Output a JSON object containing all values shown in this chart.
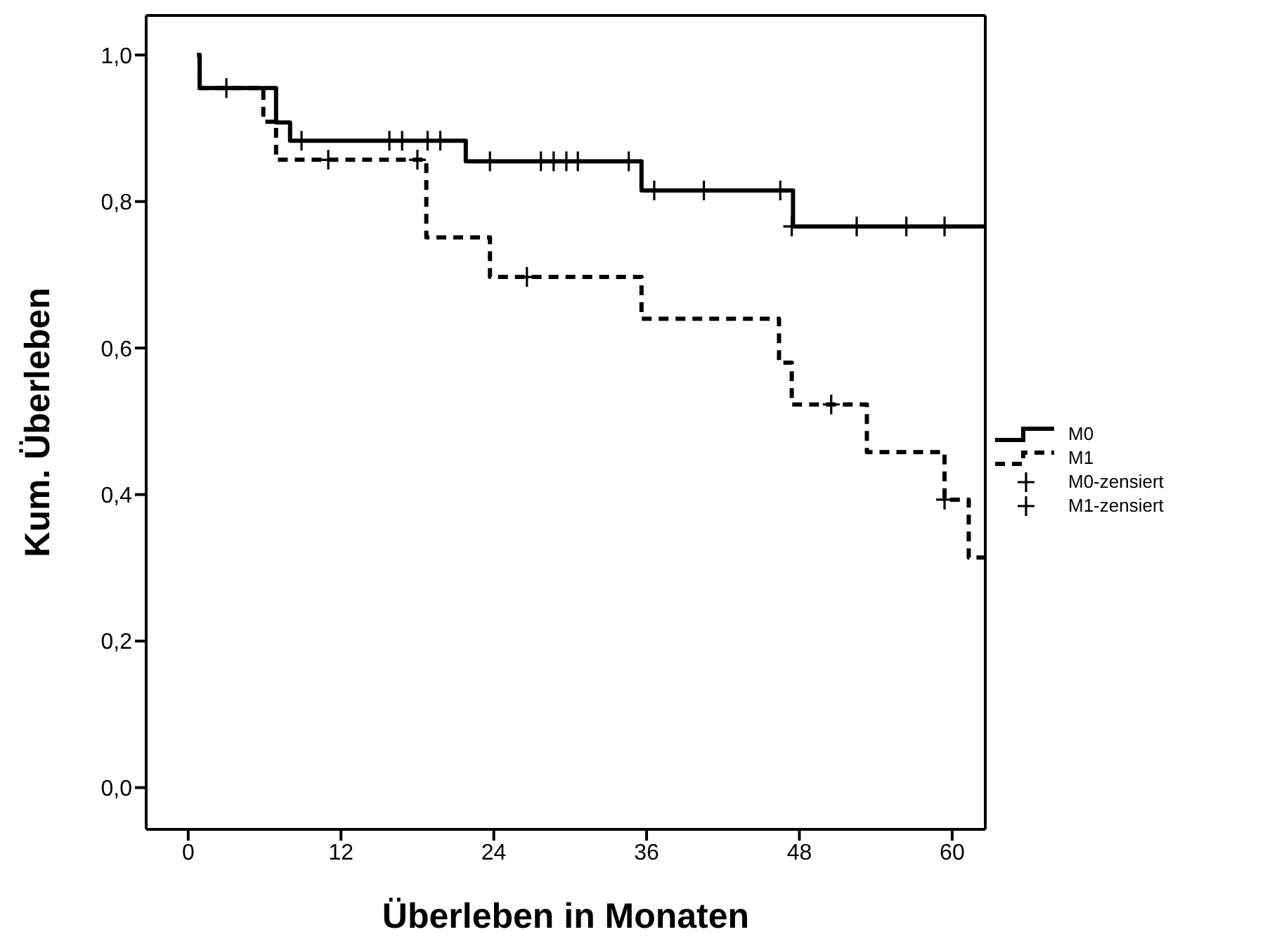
{
  "chart_data": {
    "type": "step",
    "xlabel": "Überleben in Monaten",
    "ylabel": "Kum. Überleben",
    "xlim": [
      -3.3,
      62.6
    ],
    "xticks": [
      0,
      12,
      24,
      36,
      48,
      60
    ],
    "ylim": [
      -0.057,
      1.054
    ],
    "yticks": [
      {
        "value": 0,
        "label": "0,0"
      },
      {
        "value": 0.2,
        "label": "0,2"
      },
      {
        "value": 0.4,
        "label": "0,4"
      },
      {
        "value": 0.6,
        "label": "0,6"
      },
      {
        "value": 0.8,
        "label": "0,8"
      },
      {
        "value": 1,
        "label": "1,0"
      }
    ],
    "legend": "right",
    "series": [
      {
        "name": "M0",
        "color": "#000000",
        "line_style": "solid",
        "marker": "none",
        "x": [
          0.7,
          0.9,
          6.9,
          8.0,
          21.8,
          35.6,
          47.5,
          62.6
        ],
        "values": [
          1.0,
          0.955,
          0.908,
          0.883,
          0.855,
          0.815,
          0.766,
          0.766
        ]
      },
      {
        "name": "M1",
        "color": "#000000",
        "line_style": "dashed",
        "marker": "none",
        "x": [
          0.7,
          0.9,
          5.9,
          6.9,
          18.7,
          23.7,
          35.6,
          46.4,
          47.4,
          53.3,
          59.4,
          61.3,
          62.6
        ],
        "values": [
          1.0,
          0.955,
          0.909,
          0.857,
          0.751,
          0.697,
          0.64,
          0.58,
          0.523,
          0.458,
          0.393,
          0.314,
          0.314
        ]
      },
      {
        "name": "M0-zensiert",
        "type": "scatter",
        "color": "#000000",
        "marker": "cross",
        "x": [
          3.0,
          8.9,
          15.8,
          16.8,
          18.8,
          19.8,
          23.7,
          27.7,
          28.7,
          29.7,
          30.6,
          34.6,
          36.6,
          40.5,
          46.5,
          47.4,
          52.5,
          56.4,
          59.4
        ],
        "values": [
          0.955,
          0.883,
          0.883,
          0.883,
          0.883,
          0.883,
          0.855,
          0.855,
          0.855,
          0.855,
          0.855,
          0.855,
          0.815,
          0.815,
          0.815,
          0.766,
          0.766,
          0.766,
          0.766
        ]
      },
      {
        "name": "M1-zensiert",
        "type": "scatter",
        "color": "#000000",
        "marker": "cross",
        "x": [
          11.0,
          18.0,
          26.6,
          50.5,
          59.4
        ],
        "values": [
          0.857,
          0.857,
          0.697,
          0.523,
          0.393
        ]
      }
    ]
  }
}
